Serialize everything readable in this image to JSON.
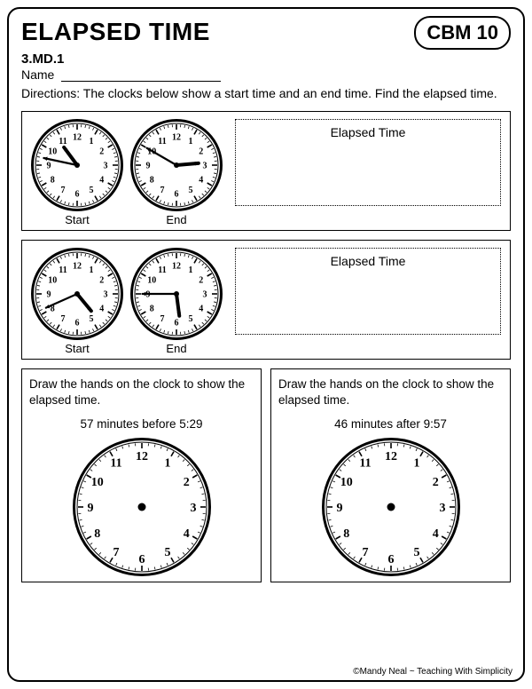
{
  "header": {
    "title": "ELAPSED TIME",
    "badge": "CBM 10",
    "standard": "3.MD.1",
    "name_label": "Name",
    "directions": "Directions:  The clocks below show a start time and an end time.  Find the elapsed time."
  },
  "labels": {
    "start": "Start",
    "end": "End",
    "elapsed": "Elapsed Time",
    "draw_prompt": "Draw the hands on the clock to show the elapsed time."
  },
  "problem1": {
    "start": {
      "hour": 10,
      "minute": 47
    },
    "end": {
      "hour": 2,
      "minute": 50
    }
  },
  "problem2": {
    "start": {
      "hour": 4,
      "minute": 41
    },
    "end": {
      "hour": 5,
      "minute": 45
    }
  },
  "draw1": {
    "spec": "57 minutes before 5:29"
  },
  "draw2": {
    "spec": "46 minutes after 9:57"
  },
  "clock_style": {
    "small_radius": 52,
    "large_radius": 78,
    "face_fill": "#ffffff",
    "stroke": "#000000",
    "number_fontsize_small": 10,
    "number_fontsize_large": 14,
    "hour_hand_len": 0.48,
    "minute_hand_len": 0.74,
    "hour_hand_w": 4,
    "minute_hand_w": 2.2
  },
  "footer": "©Mandy Neal ~ Teaching With Simplicity"
}
